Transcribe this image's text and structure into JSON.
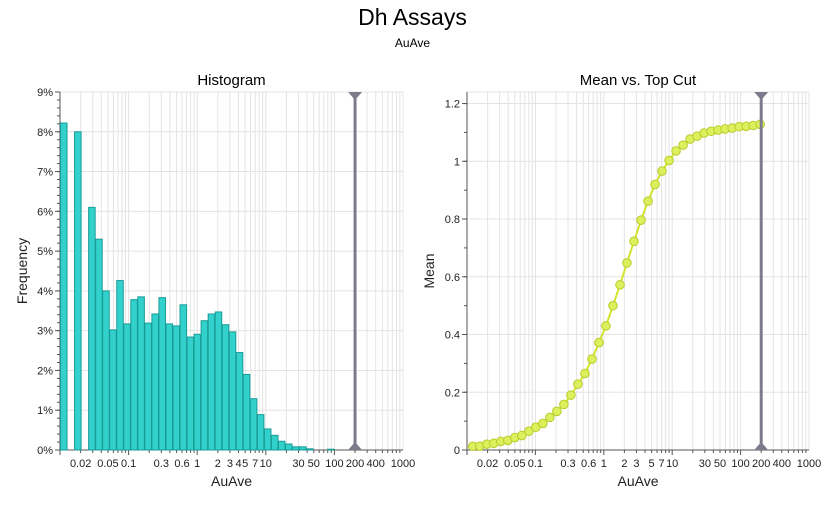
{
  "header": {
    "title": "Dh Assays",
    "subtitle": "AuAve"
  },
  "chart_data": [
    {
      "type": "bar",
      "title": "Histogram",
      "xlabel": "AuAve",
      "ylabel": "Frequency",
      "x_scale": "log",
      "xlim": [
        0.01,
        1000
      ],
      "ylim": [
        0,
        9
      ],
      "y_unit": "%",
      "bin_log_start": -2,
      "bin_log_width": 0.1025,
      "frequencies": [
        8.22,
        0,
        8.0,
        0,
        6.1,
        5.3,
        4.0,
        3.02,
        4.26,
        3.17,
        3.78,
        3.85,
        3.19,
        3.42,
        3.83,
        3.17,
        3.12,
        3.65,
        2.84,
        2.91,
        3.25,
        3.42,
        3.47,
        3.15,
        2.97,
        2.45,
        1.9,
        1.29,
        0.89,
        0.53,
        0.37,
        0.22,
        0.15,
        0.08,
        0.08,
        0.03,
        0,
        0,
        0.02
      ],
      "yticks": [
        "0%",
        "1%",
        "2%",
        "3%",
        "4%",
        "5%",
        "6%",
        "7%",
        "8%",
        "9%"
      ],
      "xticks": [
        "0.02",
        "0.05",
        "0.1",
        "0.3",
        "0.6",
        "1",
        "2",
        "3",
        "4",
        "5",
        "7",
        "10",
        "30",
        "50",
        "100",
        "200",
        "400",
        "1000"
      ],
      "top_cut": 200,
      "grid": true
    },
    {
      "type": "line",
      "title": "Mean vs. Top Cut",
      "xlabel": "AuAve",
      "ylabel": "Mean",
      "x_scale": "log",
      "xlim": [
        0.01,
        1000
      ],
      "ylim": [
        0,
        1.24
      ],
      "point_log_start": -1.916,
      "point_log_step": 0.1025,
      "values": [
        0.013,
        0.013,
        0.02,
        0.023,
        0.03,
        0.033,
        0.043,
        0.05,
        0.065,
        0.079,
        0.092,
        0.113,
        0.134,
        0.158,
        0.19,
        0.228,
        0.265,
        0.315,
        0.372,
        0.43,
        0.5,
        0.572,
        0.648,
        0.723,
        0.796,
        0.862,
        0.92,
        0.966,
        1.003,
        1.036,
        1.056,
        1.077,
        1.087,
        1.098,
        1.104,
        1.108,
        1.112,
        1.115,
        1.12,
        1.121,
        1.124,
        1.128
      ],
      "yticks": [
        "0",
        "0.2",
        "0.4",
        "0.6",
        "0.8",
        "1",
        "1.2"
      ],
      "xticks": [
        "0.02",
        "0.05",
        "0.1",
        "0.3",
        "0.6",
        "1",
        "2",
        "3",
        "5",
        "7",
        "10",
        "30",
        "50",
        "100",
        "200",
        "400",
        "1000"
      ],
      "top_cut": 200,
      "grid": true
    }
  ],
  "colors": {
    "bar_fill": "#33d1cc",
    "bar_stroke": "#199c97",
    "point_fill": "#dcef5c",
    "point_stroke": "#b9cc2c",
    "line": "#d2e52c",
    "cut": "#7b7b8c",
    "grid": "#e4e4e4"
  }
}
